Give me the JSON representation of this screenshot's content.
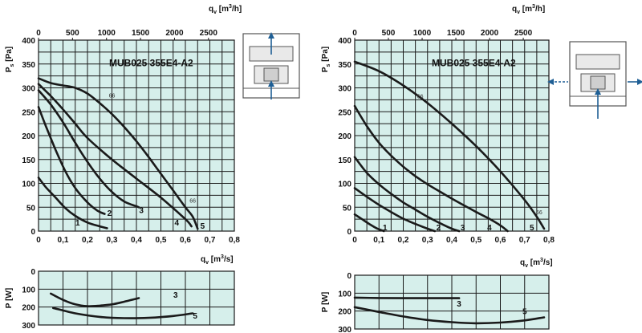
{
  "colors": {
    "plot_bg": "#d6efeb",
    "grid": "#1a1a1a",
    "curve": "#1a1a1a",
    "arrow_blue": "#1f5f95",
    "icon_fill": "#e9e9e9",
    "icon_stroke": "#555555"
  },
  "charts": [
    {
      "model": "MUB025 355E4-A2",
      "top_axis_label": "qV [m3/h]",
      "top_ticks": [
        "0",
        "500",
        "1000",
        "1500",
        "2000",
        "2500"
      ],
      "bottom_axis_label": "qV [m3/s]",
      "x_ticks": [
        "0",
        "0,1",
        "0,2",
        "0,3",
        "0,4",
        "0,5",
        "0,6",
        "0,7",
        "0,8"
      ],
      "ps_axis_label": "Ps [Pa]",
      "ps_ticks": [
        "0",
        "50",
        "100",
        "150",
        "200",
        "250",
        "300",
        "350",
        "400"
      ],
      "p_axis_label": "P [W]",
      "p_ticks": [
        "0",
        "100",
        "200",
        "300"
      ],
      "airflow_icon": "vertical-flow-icon",
      "speed_marker": "66"
    },
    {
      "model": "MUB025 355E4-A2",
      "top_axis_label": "qV [m3/h]",
      "top_ticks": [
        "0",
        "500",
        "1000",
        "1500",
        "2000",
        "2500"
      ],
      "bottom_axis_label": "qV [m3/s]",
      "x_ticks": [
        "0",
        "0,1",
        "0,2",
        "0,3",
        "0,4",
        "0,5",
        "0,6",
        "0,7",
        "0,8"
      ],
      "ps_axis_label": "Ps [Pa]",
      "ps_ticks": [
        "0",
        "50",
        "100",
        "150",
        "200",
        "250",
        "300",
        "350",
        "400"
      ],
      "p_axis_label": "P [W]",
      "p_ticks": [
        "0",
        "100",
        "200",
        "300"
      ],
      "airflow_icon": "side-flow-icon",
      "speed_marker": "66"
    }
  ],
  "chart_data": [
    {
      "type": "line",
      "title": "MUB025 355E4-A2",
      "xlabel": "qV [m3/s]",
      "ylabel": "Ps [Pa]",
      "xlim": [
        0,
        0.8
      ],
      "ylim": [
        0,
        400
      ],
      "series": [
        {
          "name": "1",
          "x": [
            0,
            0.03,
            0.07,
            0.11,
            0.15,
            0.2,
            0.25,
            0.28
          ],
          "y": [
            112,
            92,
            70,
            48,
            32,
            18,
            10,
            6
          ]
        },
        {
          "name": "2",
          "x": [
            0,
            0.03,
            0.07,
            0.11,
            0.15,
            0.2,
            0.24,
            0.27
          ],
          "y": [
            260,
            220,
            170,
            125,
            90,
            60,
            43,
            36
          ]
        },
        {
          "name": "3",
          "x": [
            0,
            0.05,
            0.1,
            0.15,
            0.2,
            0.25,
            0.3,
            0.35,
            0.4,
            0.41
          ],
          "y": [
            295,
            265,
            228,
            185,
            145,
            110,
            82,
            62,
            52,
            50
          ]
        },
        {
          "name": "4",
          "x": [
            0,
            0.05,
            0.1,
            0.15,
            0.2,
            0.3,
            0.4,
            0.5,
            0.6,
            0.625
          ],
          "y": [
            308,
            283,
            255,
            225,
            195,
            150,
            110,
            70,
            25,
            10
          ]
        },
        {
          "name": "5",
          "x": [
            0,
            0.05,
            0.1,
            0.15,
            0.2,
            0.25,
            0.3,
            0.35,
            0.4,
            0.45,
            0.5,
            0.55,
            0.6,
            0.63,
            0.65
          ],
          "y": [
            320,
            310,
            305,
            300,
            288,
            268,
            245,
            218,
            188,
            155,
            120,
            85,
            50,
            30,
            5
          ]
        }
      ],
      "annotations": [
        "66"
      ],
      "power": {
        "xlabel": "qV [m3/s]",
        "ylabel": "P [W]",
        "ylim": [
          0,
          300
        ],
        "y_inverted": true,
        "series": [
          {
            "name": "3",
            "x": [
              0.05,
              0.1,
              0.15,
              0.2,
              0.25,
              0.3,
              0.35,
              0.41
            ],
            "y": [
              125,
              160,
              185,
              195,
              192,
              185,
              170,
              150
            ]
          },
          {
            "name": "5",
            "x": [
              0.06,
              0.15,
              0.25,
              0.35,
              0.45,
              0.55,
              0.63
            ],
            "y": [
              205,
              235,
              255,
              262,
              260,
              250,
              235
            ]
          }
        ]
      }
    },
    {
      "type": "line",
      "title": "MUB025 355E4-A2",
      "xlabel": "qV [m3/s]",
      "ylabel": "Ps [Pa]",
      "xlim": [
        0,
        0.8
      ],
      "ylim": [
        0,
        400
      ],
      "series": [
        {
          "name": "1",
          "x": [
            0,
            0.03,
            0.06,
            0.09,
            0.12
          ],
          "y": [
            35,
            25,
            15,
            6,
            0
          ]
        },
        {
          "name": "2",
          "x": [
            0,
            0.05,
            0.1,
            0.15,
            0.2,
            0.25,
            0.3,
            0.33
          ],
          "y": [
            90,
            72,
            55,
            40,
            26,
            15,
            5,
            0
          ]
        },
        {
          "name": "3",
          "x": [
            0,
            0.05,
            0.1,
            0.15,
            0.2,
            0.25,
            0.3,
            0.35,
            0.4,
            0.43
          ],
          "y": [
            155,
            122,
            98,
            78,
            60,
            45,
            30,
            17,
            5,
            0
          ]
        },
        {
          "name": "4",
          "x": [
            0,
            0.05,
            0.1,
            0.15,
            0.2,
            0.25,
            0.3,
            0.35,
            0.4,
            0.45,
            0.5,
            0.55,
            0.6,
            0.63
          ],
          "y": [
            262,
            220,
            185,
            158,
            135,
            115,
            98,
            83,
            68,
            54,
            40,
            27,
            12,
            0
          ]
        },
        {
          "name": "5",
          "x": [
            0,
            0.1,
            0.2,
            0.3,
            0.4,
            0.5,
            0.6,
            0.7,
            0.75,
            0.78
          ],
          "y": [
            355,
            335,
            305,
            268,
            225,
            178,
            125,
            65,
            30,
            5
          ]
        }
      ],
      "annotations": [
        "66"
      ],
      "power": {
        "xlabel": "qV [m3/s]",
        "ylabel": "P [W]",
        "ylim": [
          0,
          300
        ],
        "y_inverted": true,
        "series": [
          {
            "name": "3",
            "x": [
              0,
              0.1,
              0.2,
              0.3,
              0.43
            ],
            "y": [
              125,
              127,
              128,
              128,
              128
            ]
          },
          {
            "name": "5",
            "x": [
              0,
              0.1,
              0.2,
              0.3,
              0.4,
              0.5,
              0.6,
              0.7,
              0.78
            ],
            "y": [
              178,
              205,
              230,
              250,
              262,
              268,
              264,
              252,
              235
            ]
          }
        ]
      }
    }
  ]
}
